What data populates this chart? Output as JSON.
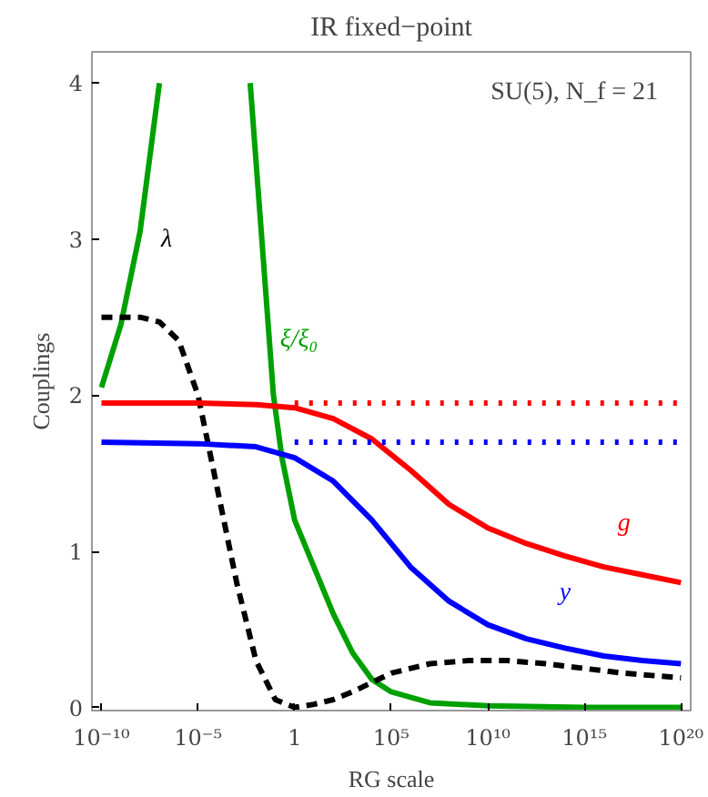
{
  "chart_data": {
    "type": "line",
    "title": "IR fixed−point",
    "xlabel": "RG scale",
    "ylabel": "Couplings",
    "log": "x",
    "xlim": [
      3.2e-11,
      3.2e+20
    ],
    "ylim": [
      -0.02,
      4.2
    ],
    "xticks": [
      {
        "value": 1e-10,
        "label": "10⁻¹⁰"
      },
      {
        "value": 1e-05,
        "label": "10⁻⁵"
      },
      1,
      {
        "value": 100000.0,
        "label": "10⁵"
      },
      {
        "value": 10000000000.0,
        "label": "10¹⁰"
      },
      {
        "value": 1000000000000000.0,
        "label": "10¹⁵"
      },
      {
        "value": 1e+20,
        "label": "10²⁰"
      }
    ],
    "yticks": [
      0,
      1,
      2,
      3,
      4
    ],
    "grid": false,
    "legend": false,
    "marker": "none",
    "series": [
      {
        "color": "#00a000",
        "line_style": "solid",
        "x": [
          1e-10,
          1e-09,
          1e-08,
          1e-07
        ],
        "values": [
          2.05,
          2.45,
          3.05,
          4.0
        ]
      },
      {
        "name": "ξ/ξ₀",
        "color": "#00a000",
        "line_style": "solid",
        "x": [
          0.005,
          0.08,
          0.22,
          1,
          10,
          100,
          1000,
          10000,
          100000,
          10000000.0,
          10000000000.0,
          1000000000000000.0,
          1e+20
        ],
        "values": [
          4.0,
          2.0,
          1.6,
          1.2,
          0.9,
          0.6,
          0.35,
          0.18,
          0.1,
          0.03,
          0.01,
          0.0,
          0.0
        ]
      },
      {
        "name": "λ",
        "color": "#000000",
        "line_style": "dashed",
        "x": [
          1e-10,
          1e-08,
          1e-07,
          1e-06,
          1e-05,
          0.0001,
          0.001,
          0.01,
          0.1,
          1,
          10,
          100,
          1000,
          10000,
          100000,
          10000000.0,
          1000000000.0,
          100000000000.0,
          10000000000000.0,
          1000000000000000.0,
          1e+17,
          1e+20
        ],
        "values": [
          2.5,
          2.5,
          2.47,
          2.35,
          2.0,
          1.4,
          0.8,
          0.3,
          0.05,
          0.0,
          0.02,
          0.05,
          0.1,
          0.16,
          0.22,
          0.28,
          0.3,
          0.3,
          0.28,
          0.25,
          0.22,
          0.19
        ]
      },
      {
        "name": "g",
        "color": "#ff0000",
        "line_style": "solid",
        "x": [
          1e-10,
          1e-05,
          0.01,
          1,
          100,
          10000,
          1000000.0,
          100000000.0,
          10000000000.0,
          1000000000000.0,
          100000000000000.0,
          1e+16,
          1e+18,
          1e+20
        ],
        "values": [
          1.95,
          1.95,
          1.94,
          1.92,
          1.85,
          1.72,
          1.52,
          1.3,
          1.15,
          1.05,
          0.97,
          0.9,
          0.85,
          0.8
        ]
      },
      {
        "name": "y",
        "color": "#0000ff",
        "line_style": "solid",
        "x": [
          1e-10,
          1e-05,
          0.01,
          1,
          100,
          10000,
          1000000.0,
          100000000.0,
          10000000000.0,
          1000000000000.0,
          100000000000000.0,
          1e+16,
          1e+18,
          1e+20
        ],
        "values": [
          1.7,
          1.69,
          1.67,
          1.6,
          1.45,
          1.2,
          0.9,
          0.68,
          0.53,
          0.44,
          0.38,
          0.33,
          0.3,
          0.28
        ]
      },
      {
        "color": "#ff0000",
        "line_style": "dotted",
        "x": [
          1,
          1e+20
        ],
        "values": [
          1.95,
          1.95
        ]
      },
      {
        "color": "#0000ff",
        "line_style": "dotted",
        "x": [
          1,
          1e+20
        ],
        "values": [
          1.7,
          1.7
        ]
      }
    ],
    "annotations": [
      "SU(5), N_f = 21"
    ]
  }
}
